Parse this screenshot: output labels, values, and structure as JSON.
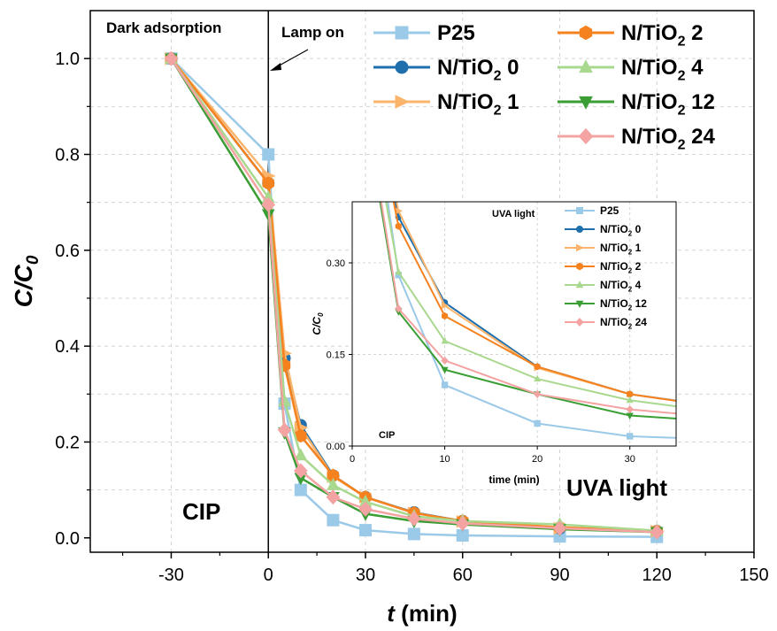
{
  "chart_data": [
    {
      "type": "line",
      "title": "",
      "xlabel": "t (min)",
      "ylabel": "C/C0",
      "xlim": [
        -55,
        150
      ],
      "ylim": [
        -0.03,
        1.1
      ],
      "xticks": [
        -30,
        0,
        30,
        60,
        90,
        120,
        150
      ],
      "yticks": [
        0.0,
        0.2,
        0.4,
        0.6,
        0.8,
        1.0
      ],
      "x": [
        -30,
        0,
        5,
        10,
        20,
        30,
        45,
        60,
        90,
        120
      ],
      "series": [
        {
          "name": "P25",
          "color": "#9bc9e8",
          "marker": "square",
          "values": [
            1.0,
            0.8,
            0.28,
            0.1,
            0.037,
            0.016,
            0.008,
            0.005,
            0.003,
            0.002
          ]
        },
        {
          "name": "N/TiO2 0",
          "color": "#1f6fad",
          "marker": "circle",
          "values": [
            1.0,
            0.74,
            0.375,
            0.235,
            0.13,
            0.085,
            0.053,
            0.035,
            0.02,
            0.014
          ]
        },
        {
          "name": "N/TiO2 1",
          "color": "#fbb46b",
          "marker": "triangle-right",
          "values": [
            1.0,
            0.755,
            0.385,
            0.23,
            0.128,
            0.085,
            0.052,
            0.034,
            0.02,
            0.014
          ]
        },
        {
          "name": "N/TiO2 2",
          "color": "#f5821f",
          "marker": "hexagon",
          "values": [
            1.0,
            0.74,
            0.36,
            0.213,
            0.13,
            0.085,
            0.052,
            0.035,
            0.022,
            0.014
          ]
        },
        {
          "name": "N/TiO2 4",
          "color": "#a9d88f",
          "marker": "triangle-up",
          "values": [
            1.0,
            0.71,
            0.285,
            0.172,
            0.11,
            0.075,
            0.045,
            0.035,
            0.028,
            0.015
          ]
        },
        {
          "name": "N/TiO2 12",
          "color": "#3a9e34",
          "marker": "triangle-down",
          "values": [
            1.0,
            0.675,
            0.22,
            0.125,
            0.085,
            0.05,
            0.035,
            0.028,
            0.018,
            0.012
          ]
        },
        {
          "name": "N/TiO2 24",
          "color": "#f4a3a3",
          "marker": "diamond",
          "values": [
            1.0,
            0.695,
            0.225,
            0.14,
            0.085,
            0.06,
            0.04,
            0.03,
            0.02,
            0.012
          ]
        }
      ],
      "legend": "top-right",
      "grid": true,
      "annotations": {
        "dark": "Dark adsorption",
        "lamp": "Lamp on",
        "cip": "CIP",
        "uva": "UVA light"
      }
    },
    {
      "type": "line",
      "title": "",
      "xlabel": "time (min)",
      "ylabel": "C/C0",
      "xlim": [
        0,
        35
      ],
      "ylim": [
        0,
        0.4
      ],
      "xticks": [
        0,
        10,
        20,
        30
      ],
      "yticks": [
        "0.00",
        "0.15",
        "0.30"
      ],
      "legend": "right",
      "grid": true,
      "annotations": {
        "uva": "UVA light",
        "cip": "CIP"
      }
    }
  ]
}
